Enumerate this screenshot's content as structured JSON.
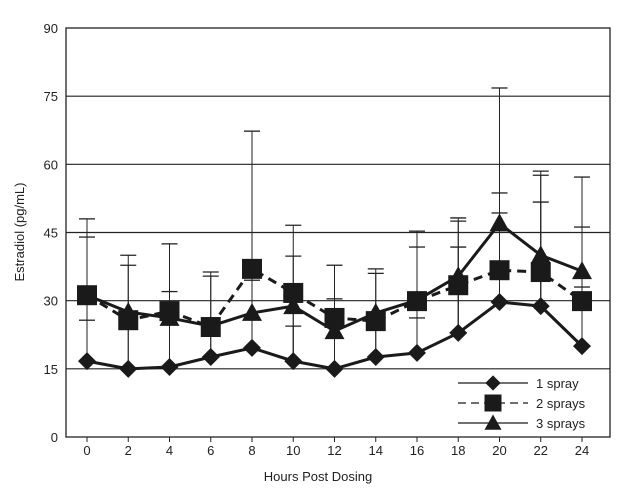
{
  "chart_data": {
    "type": "line",
    "title": "",
    "xlabel": "Hours Post Dosing",
    "ylabel": "Estradiol (pg/mL)",
    "ylim": [
      0,
      90
    ],
    "yticks": [
      "0",
      "15",
      "30",
      "45",
      "60",
      "75",
      "90"
    ],
    "ytick_values": [
      0,
      15,
      30,
      45,
      60,
      75,
      90
    ],
    "x": [
      0,
      2,
      4,
      6,
      8,
      10,
      12,
      14,
      16,
      18,
      20,
      22,
      24
    ],
    "xticks": [
      "0",
      "2",
      "4",
      "6",
      "8",
      "10",
      "12",
      "14",
      "16",
      "18",
      "20",
      "22",
      "24"
    ],
    "grid": "horizontal",
    "legend_position": "bottom-right",
    "series": [
      {
        "name": "1 spray",
        "marker": "diamond",
        "dash": "solid",
        "values": [
          16.7,
          15.0,
          15.4,
          17.6,
          19.6,
          16.7,
          15.0,
          17.6,
          18.5,
          22.9,
          29.7,
          28.8,
          20.0
        ]
      },
      {
        "name": "2 sprays",
        "marker": "square",
        "dash": "dashed",
        "values": [
          31.2,
          25.7,
          27.7,
          24.2,
          37.0,
          31.7,
          26.2,
          25.5,
          29.9,
          33.4,
          36.7,
          36.3,
          29.9
        ]
      },
      {
        "name": "3 sprays",
        "marker": "triangle",
        "dash": "solid",
        "values": [
          31.2,
          27.5,
          26.2,
          24.4,
          27.3,
          28.8,
          23.3,
          27.3,
          30.1,
          35.4,
          47.0,
          40.0,
          36.5
        ]
      }
    ],
    "error_bar_upper_caps": [
      [
        48.0,
        44.0,
        25.7
      ],
      [
        40.0,
        37.8
      ],
      [
        42.5,
        32.0
      ],
      [
        36.3,
        35.4
      ],
      [
        67.3,
        34.5
      ],
      [
        46.6,
        39.8,
        24.4
      ],
      [
        37.8,
        30.4
      ],
      [
        37.0,
        36.0
      ],
      [
        45.3,
        41.8,
        26.2
      ],
      [
        48.2,
        47.5,
        41.8
      ],
      [
        76.8,
        53.7,
        49.3
      ],
      [
        58.5,
        57.6,
        51.7
      ],
      [
        57.2,
        46.2,
        33.0
      ]
    ]
  }
}
